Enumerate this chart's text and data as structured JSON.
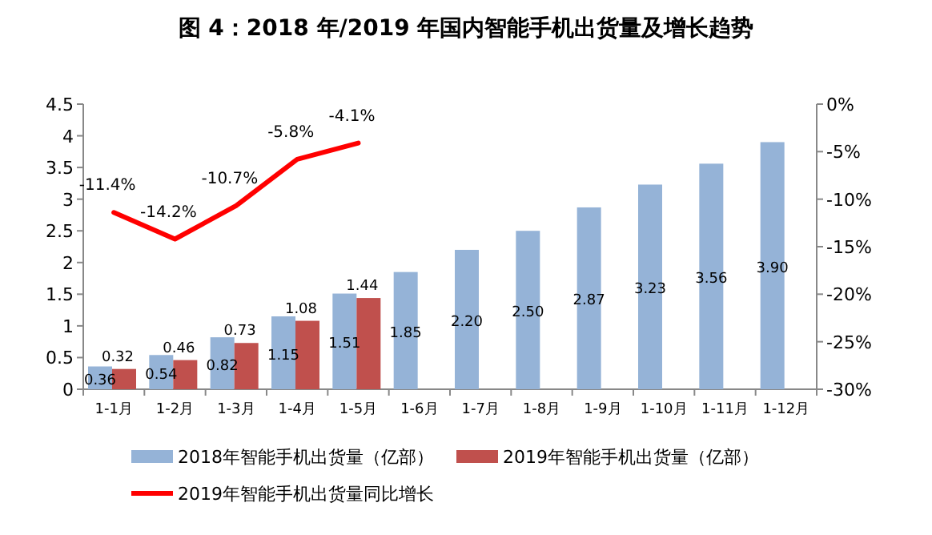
{
  "chart_data": {
    "type": "bar",
    "title": "图 4：2018 年/2019 年国内智能手机出货量及增长趋势",
    "categories": [
      "1-1月",
      "1-2月",
      "1-3月",
      "1-4月",
      "1-5月",
      "1-6月",
      "1-7月",
      "1-8月",
      "1-9月",
      "1-10月",
      "1-11月",
      "1-12月"
    ],
    "series": [
      {
        "name": "2018年智能手机出货量（亿部）",
        "color": "#95b3d7",
        "values": [
          0.36,
          0.54,
          0.82,
          1.15,
          1.51,
          1.85,
          2.2,
          2.5,
          2.87,
          3.23,
          3.56,
          3.9
        ],
        "value_labels": [
          "0.36",
          "0.54",
          "0.82",
          "1.15",
          "1.51",
          "1.85",
          "2.20",
          "2.50",
          "2.87",
          "3.23",
          "3.56",
          "3.90"
        ]
      },
      {
        "name": "2019年智能手机出货量（亿部）",
        "color": "#c0504d",
        "values": [
          0.32,
          0.46,
          0.73,
          1.08,
          1.44,
          null,
          null,
          null,
          null,
          null,
          null,
          null
        ],
        "value_labels": [
          "0.32",
          "0.46",
          "0.73",
          "1.08",
          "1.44",
          null,
          null,
          null,
          null,
          null,
          null,
          null
        ]
      },
      {
        "name": "2019年智能手机出货量同比增长",
        "type": "line",
        "axis": "y2",
        "color": "#ff0000",
        "values": [
          -11.4,
          -14.2,
          -10.7,
          -5.8,
          -4.1,
          null,
          null,
          null,
          null,
          null,
          null,
          null
        ],
        "value_labels": [
          "-11.4%",
          "-14.2%",
          "-10.7%",
          "-5.8%",
          "-4.1%",
          null,
          null,
          null,
          null,
          null,
          null,
          null
        ]
      }
    ],
    "ylim": [
      0,
      4.5
    ],
    "yticks": [
      0,
      0.5,
      1,
      1.5,
      2,
      2.5,
      3,
      3.5,
      4,
      4.5
    ],
    "y2lim": [
      -30,
      0
    ],
    "y2ticks": [
      {
        "value": 0,
        "label": "0%"
      },
      {
        "value": -5,
        "label": "-5%"
      },
      {
        "value": -10,
        "label": "-10%"
      },
      {
        "value": -15,
        "label": "-15%"
      },
      {
        "value": -20,
        "label": "-20%"
      },
      {
        "value": -25,
        "label": "-25%"
      },
      {
        "value": -30,
        "label": "-30%"
      }
    ],
    "legend": "bottom",
    "grid": false
  }
}
